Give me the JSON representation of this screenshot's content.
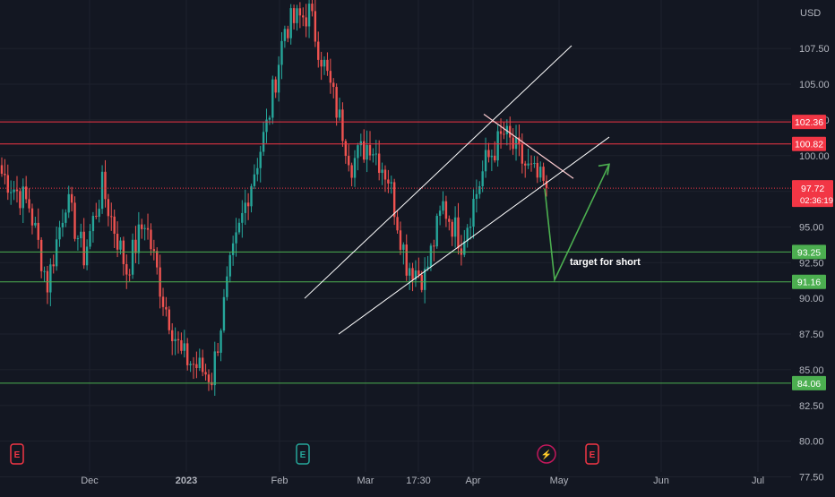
{
  "chart_data": {
    "type": "candlestick",
    "currency": "USD",
    "y_ticks": [
      "107.50",
      "105.00",
      "102.50",
      "100.00",
      "97.50",
      "95.00",
      "92.50",
      "90.00",
      "87.50",
      "85.00",
      "82.50",
      "80.00",
      "77.50"
    ],
    "x_ticks": [
      "Dec",
      "2023",
      "Feb",
      "Mar",
      "17:30",
      "Apr",
      "May",
      "Jun",
      "Jul"
    ],
    "ylim": [
      76.4,
      110.9
    ],
    "price_levels": [
      {
        "value": 102.36,
        "label": "102.36",
        "color": "#f23645"
      },
      {
        "value": 100.82,
        "label": "100.82",
        "color": "#f23645"
      },
      {
        "value": 93.25,
        "label": "93.25",
        "color": "#4caf50"
      },
      {
        "value": 91.16,
        "label": "91.16",
        "color": "#4caf50"
      },
      {
        "value": 84.06,
        "label": "84.06",
        "color": "#4caf50"
      }
    ],
    "last_price": {
      "value": 97.72,
      "label": "97.72",
      "countdown": "02:36:19",
      "color": "#f23645"
    },
    "annotation": "target for short",
    "trend_channel": {
      "upper_from": 90.0,
      "upper_to": 107.7,
      "lower_from": 87.5,
      "lower_to": 101.3
    },
    "projection_arrow": {
      "from": 97.7,
      "low": 91.3,
      "to": 99.4
    },
    "event_markers": [
      {
        "type": "earnings",
        "glyph": "E",
        "color": "#f23645"
      },
      {
        "type": "earnings",
        "glyph": "E",
        "color": "#26a69a"
      },
      {
        "type": "dividend",
        "glyph": "⚡",
        "color": "#c2185b"
      },
      {
        "type": "earnings",
        "glyph": "E",
        "color": "#f23645"
      }
    ],
    "ohlc_segments": [
      {
        "from": 99.0,
        "to": 96.5,
        "n": 10
      },
      {
        "from": 96.5,
        "to": 91.0,
        "n": 6
      },
      {
        "from": 91.0,
        "to": 97.0,
        "n": 6
      },
      {
        "from": 97.0,
        "to": 93.0,
        "n": 6
      },
      {
        "from": 93.0,
        "to": 97.8,
        "n": 6
      },
      {
        "from": 97.8,
        "to": 92.0,
        "n": 8
      },
      {
        "from": 92.0,
        "to": 95.5,
        "n": 6
      },
      {
        "from": 95.5,
        "to": 90.0,
        "n": 6
      },
      {
        "from": 90.0,
        "to": 86.0,
        "n": 6
      },
      {
        "from": 86.0,
        "to": 84.5,
        "n": 10
      },
      {
        "from": 84.5,
        "to": 92.0,
        "n": 6
      },
      {
        "from": 92.0,
        "to": 97.5,
        "n": 6
      },
      {
        "from": 97.5,
        "to": 102.0,
        "n": 6
      },
      {
        "from": 102.0,
        "to": 109.0,
        "n": 6
      },
      {
        "from": 109.0,
        "to": 110.0,
        "n": 8
      },
      {
        "from": 110.0,
        "to": 104.0,
        "n": 8
      },
      {
        "from": 104.0,
        "to": 99.5,
        "n": 6
      },
      {
        "from": 99.5,
        "to": 101.0,
        "n": 6
      },
      {
        "from": 101.0,
        "to": 98.5,
        "n": 6
      },
      {
        "from": 98.5,
        "to": 92.5,
        "n": 6
      },
      {
        "from": 92.5,
        "to": 91.5,
        "n": 6
      },
      {
        "from": 91.5,
        "to": 96.5,
        "n": 6
      },
      {
        "from": 96.5,
        "to": 94.0,
        "n": 6
      },
      {
        "from": 94.0,
        "to": 99.5,
        "n": 8
      },
      {
        "from": 99.5,
        "to": 101.5,
        "n": 6
      },
      {
        "from": 101.5,
        "to": 99.0,
        "n": 8
      },
      {
        "from": 99.0,
        "to": 97.72,
        "n": 6
      }
    ]
  }
}
